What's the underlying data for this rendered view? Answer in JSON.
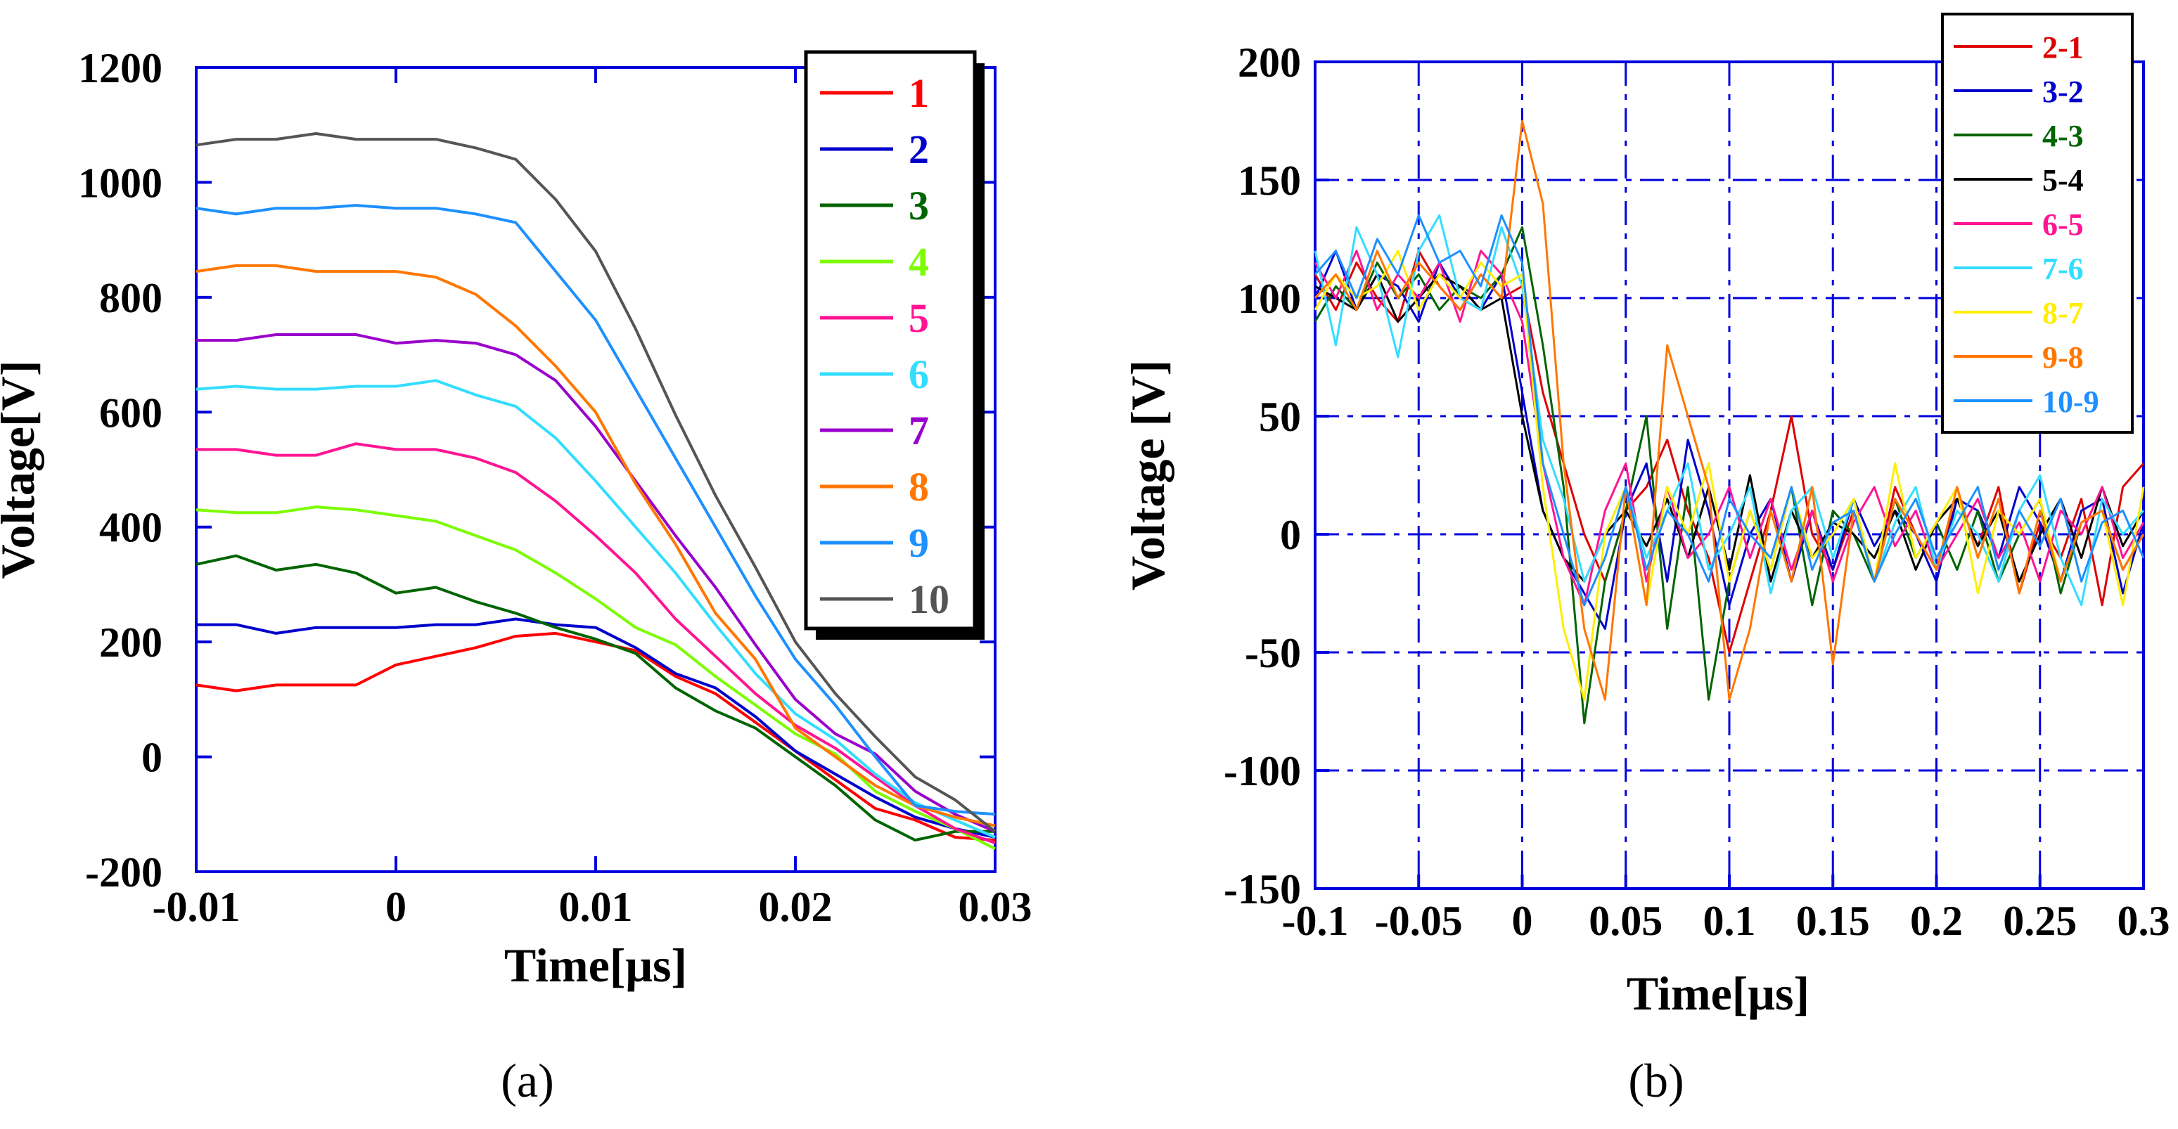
{
  "chart_data": [
    {
      "type": "line",
      "caption": "(a)",
      "xlabel": "Time[μs]",
      "ylabel": "Voltage[V]",
      "xlim": [
        -0.01,
        0.03
      ],
      "ylim": [
        -200,
        1200
      ],
      "xticks": [
        "-0.01",
        "0",
        "0.01",
        "0.02",
        "0.03"
      ],
      "yticks": [
        "-200",
        "0",
        "200",
        "400",
        "600",
        "800",
        "1000",
        "1200"
      ],
      "grid": false,
      "legend_position": "top-right",
      "x": [
        -0.01,
        -0.008,
        -0.006,
        -0.004,
        -0.002,
        0,
        0.002,
        0.004,
        0.006,
        0.008,
        0.01,
        0.012,
        0.014,
        0.016,
        0.018,
        0.02,
        0.022,
        0.024,
        0.026,
        0.028,
        0.03
      ],
      "series": [
        {
          "name": "1",
          "color": "#ff0000",
          "values": [
            125,
            115,
            125,
            125,
            125,
            160,
            175,
            190,
            210,
            215,
            200,
            185,
            140,
            110,
            60,
            10,
            -40,
            -90,
            -110,
            -140,
            -145
          ]
        },
        {
          "name": "2",
          "color": "#0000cc",
          "values": [
            230,
            230,
            215,
            225,
            225,
            225,
            230,
            230,
            240,
            230,
            225,
            190,
            145,
            120,
            70,
            10,
            -30,
            -70,
            -105,
            -125,
            -140
          ]
        },
        {
          "name": "3",
          "color": "#006400",
          "values": [
            335,
            350,
            325,
            335,
            320,
            285,
            295,
            270,
            250,
            225,
            205,
            180,
            120,
            80,
            50,
            0,
            -50,
            -110,
            -145,
            -130,
            -130
          ]
        },
        {
          "name": "4",
          "color": "#7cfc00",
          "values": [
            430,
            425,
            425,
            435,
            430,
            420,
            410,
            385,
            360,
            320,
            275,
            225,
            195,
            140,
            90,
            40,
            5,
            -60,
            -95,
            -125,
            -160
          ]
        },
        {
          "name": "5",
          "color": "#ff1493",
          "values": [
            535,
            535,
            525,
            525,
            545,
            535,
            535,
            520,
            495,
            445,
            385,
            320,
            240,
            175,
            110,
            55,
            15,
            -35,
            -85,
            -125,
            -150
          ]
        },
        {
          "name": "6",
          "color": "#33ddff",
          "values": [
            640,
            645,
            640,
            640,
            645,
            645,
            655,
            630,
            610,
            555,
            480,
            400,
            320,
            230,
            145,
            75,
            30,
            -30,
            -80,
            -110,
            -140
          ]
        },
        {
          "name": "7",
          "color": "#9900cc",
          "values": [
            725,
            725,
            735,
            735,
            735,
            720,
            725,
            720,
            700,
            655,
            575,
            480,
            385,
            295,
            195,
            100,
            40,
            5,
            -60,
            -100,
            -130
          ]
        },
        {
          "name": "8",
          "color": "#ff7700",
          "values": [
            845,
            855,
            855,
            845,
            845,
            845,
            835,
            805,
            750,
            680,
            600,
            475,
            370,
            250,
            170,
            50,
            0,
            -50,
            -85,
            -105,
            -120
          ]
        },
        {
          "name": "9",
          "color": "#1e90ff",
          "values": [
            955,
            945,
            955,
            955,
            960,
            955,
            955,
            945,
            930,
            845,
            760,
            640,
            520,
            400,
            280,
            170,
            90,
            0,
            -85,
            -95,
            -100
          ]
        },
        {
          "name": "10",
          "color": "#555555",
          "values": [
            1065,
            1075,
            1075,
            1085,
            1075,
            1075,
            1075,
            1060,
            1040,
            970,
            880,
            745,
            595,
            455,
            330,
            200,
            110,
            35,
            -35,
            -75,
            -130
          ]
        }
      ]
    },
    {
      "type": "line",
      "caption": "(b)",
      "xlabel": "Time[μs]",
      "ylabel": "Voltage [V]",
      "xlim": [
        -0.1,
        0.3
      ],
      "ylim": [
        -150,
        200
      ],
      "xticks": [
        "-0.1",
        "-0.05",
        "0",
        "0.05",
        "0.1",
        "0.15",
        "0.2",
        "0.25",
        "0.3"
      ],
      "yticks": [
        "-150",
        "-100",
        "-50",
        "0",
        "50",
        "100",
        "150",
        "200"
      ],
      "grid": true,
      "legend_position": "top-right",
      "x": [
        -0.1,
        -0.09,
        -0.08,
        -0.07,
        -0.06,
        -0.05,
        -0.04,
        -0.03,
        -0.02,
        -0.01,
        0,
        0.01,
        0.02,
        0.03,
        0.04,
        0.05,
        0.06,
        0.07,
        0.08,
        0.09,
        0.1,
        0.11,
        0.12,
        0.13,
        0.14,
        0.15,
        0.16,
        0.17,
        0.18,
        0.19,
        0.2,
        0.21,
        0.22,
        0.23,
        0.24,
        0.25,
        0.26,
        0.27,
        0.28,
        0.29,
        0.3
      ],
      "series": [
        {
          "name": "2-1",
          "color": "#dd0000",
          "values": [
            110,
            95,
            115,
            100,
            90,
            120,
            105,
            95,
            110,
            100,
            105,
            60,
            30,
            0,
            -20,
            10,
            20,
            40,
            10,
            -10,
            -50,
            -20,
            10,
            50,
            0,
            -15,
            10,
            -20,
            20,
            0,
            -15,
            15,
            -5,
            20,
            -25,
            5,
            -10,
            15,
            -30,
            20,
            30
          ]
        },
        {
          "name": "3-2",
          "color": "#0000cc",
          "values": [
            100,
            120,
            95,
            110,
            105,
            90,
            115,
            100,
            95,
            110,
            60,
            10,
            -10,
            -25,
            -40,
            10,
            30,
            -20,
            40,
            10,
            -30,
            0,
            15,
            -20,
            10,
            -15,
            15,
            -5,
            10,
            0,
            -20,
            15,
            10,
            -10,
            20,
            5,
            -20,
            10,
            15,
            -25,
            5
          ]
        },
        {
          "name": "4-3",
          "color": "#006400",
          "values": [
            90,
            105,
            95,
            115,
            100,
            110,
            95,
            105,
            100,
            110,
            130,
            80,
            20,
            -80,
            -20,
            10,
            50,
            -40,
            20,
            -70,
            -20,
            10,
            -15,
            20,
            -30,
            10,
            0,
            -20,
            15,
            -10,
            5,
            -15,
            10,
            -20,
            0,
            15,
            -25,
            5,
            10,
            -15,
            0
          ]
        },
        {
          "name": "5-4",
          "color": "#000000",
          "values": [
            105,
            100,
            95,
            110,
            90,
            100,
            110,
            105,
            95,
            100,
            50,
            10,
            -10,
            -20,
            0,
            10,
            -5,
            15,
            -10,
            20,
            -15,
            25,
            -20,
            10,
            -10,
            5,
            0,
            -10,
            10,
            -15,
            5,
            15,
            -5,
            10,
            -20,
            0,
            15,
            -10,
            20,
            -5,
            10
          ]
        },
        {
          "name": "6-5",
          "color": "#ff1493",
          "values": [
            115,
            100,
            120,
            95,
            110,
            100,
            115,
            90,
            120,
            110,
            90,
            30,
            -10,
            -30,
            10,
            30,
            -20,
            20,
            -10,
            0,
            20,
            -10,
            15,
            -15,
            10,
            -20,
            5,
            20,
            -5,
            10,
            -15,
            0,
            15,
            -10,
            5,
            -20,
            10,
            0,
            20,
            -10,
            5
          ]
        },
        {
          "name": "7-6",
          "color": "#33ddff",
          "values": [
            120,
            80,
            130,
            110,
            75,
            120,
            135,
            100,
            95,
            130,
            105,
            40,
            15,
            -20,
            0,
            20,
            -10,
            10,
            30,
            -15,
            0,
            20,
            -25,
            10,
            20,
            -10,
            15,
            -20,
            5,
            20,
            -15,
            10,
            0,
            -20,
            10,
            25,
            -10,
            -30,
            15,
            0,
            10
          ]
        },
        {
          "name": "8-7",
          "color": "#ffee00",
          "values": [
            95,
            110,
            100,
            105,
            120,
            95,
            110,
            100,
            115,
            105,
            110,
            20,
            -40,
            -70,
            0,
            20,
            -30,
            20,
            0,
            30,
            -20,
            10,
            -15,
            20,
            -10,
            0,
            15,
            -20,
            30,
            -10,
            5,
            20,
            -25,
            10,
            0,
            15,
            -20,
            5,
            10,
            -30,
            20
          ]
        },
        {
          "name": "9-8",
          "color": "#ff7700",
          "values": [
            100,
            110,
            95,
            120,
            100,
            115,
            105,
            95,
            110,
            100,
            175,
            140,
            30,
            -40,
            -70,
            20,
            -30,
            80,
            50,
            20,
            -70,
            -40,
            10,
            -20,
            20,
            -55,
            10,
            -20,
            15,
            0,
            -15,
            20,
            -10,
            15,
            -25,
            10,
            -20,
            5,
            10,
            -15,
            0
          ]
        },
        {
          "name": "10-9",
          "color": "#1e90ff",
          "values": [
            110,
            120,
            100,
            125,
            110,
            135,
            115,
            120,
            105,
            135,
            115,
            30,
            0,
            -30,
            -10,
            20,
            -15,
            10,
            0,
            -20,
            15,
            0,
            -10,
            20,
            -15,
            5,
            10,
            -20,
            0,
            15,
            -10,
            5,
            20,
            -15,
            10,
            -5,
            15,
            -20,
            5,
            10,
            -10
          ]
        }
      ]
    }
  ]
}
